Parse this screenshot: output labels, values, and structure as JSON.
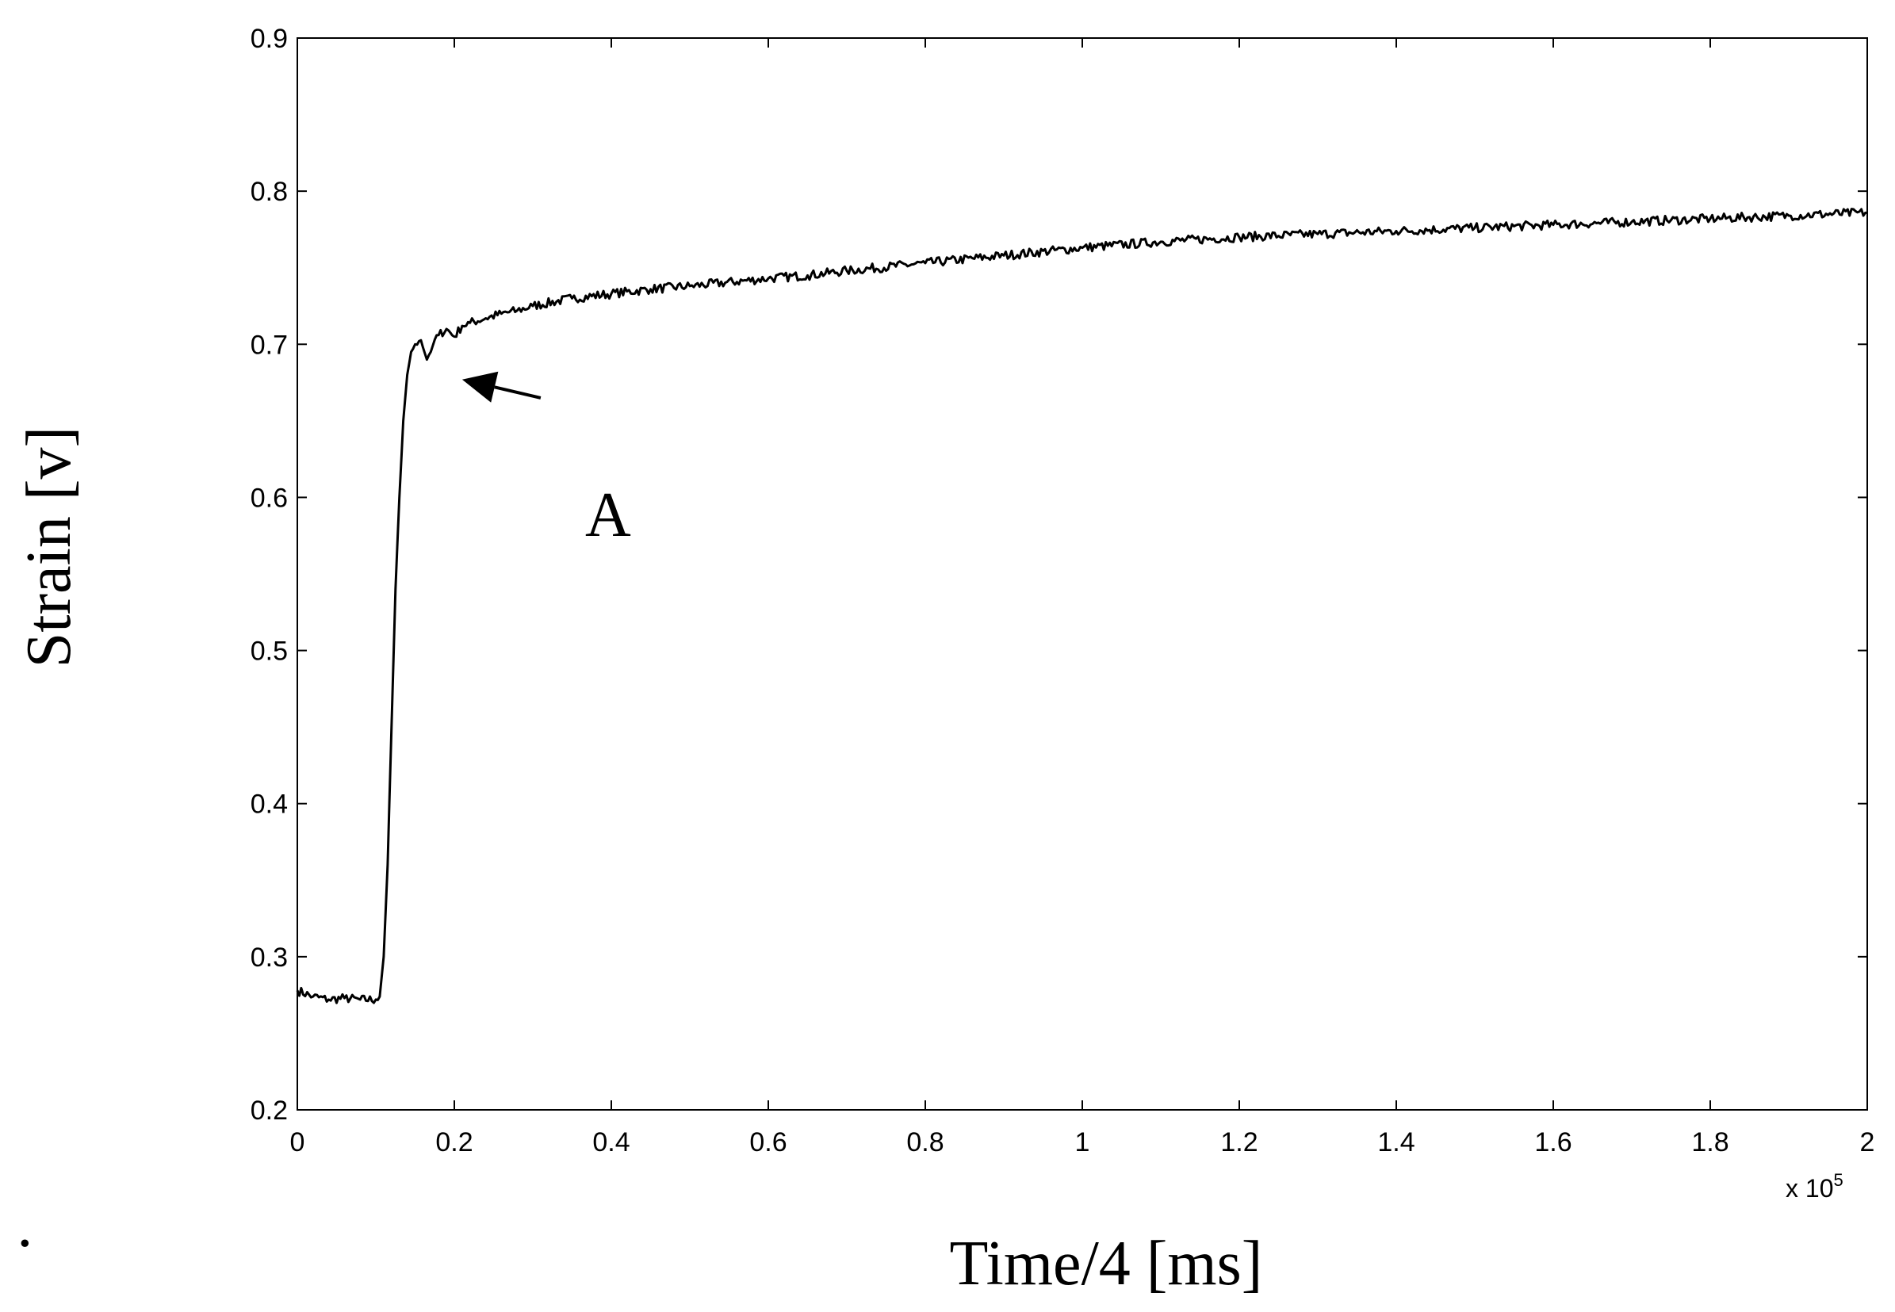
{
  "chart_data": {
    "type": "line",
    "title": "",
    "xlabel": "Time/4 [ms]",
    "ylabel": "Strain [v]",
    "x_multiplier_label": "x 10",
    "x_multiplier_exponent": "5",
    "xlim": [
      0,
      2
    ],
    "ylim": [
      0.2,
      0.9
    ],
    "x_ticks": [
      "0",
      "0.2",
      "0.4",
      "0.6",
      "0.8",
      "1",
      "1.2",
      "1.4",
      "1.6",
      "1.8",
      "2"
    ],
    "y_ticks": [
      "0.2",
      "0.3",
      "0.4",
      "0.5",
      "0.6",
      "0.7",
      "0.8",
      "0.9"
    ],
    "grid": false,
    "legend": "none",
    "line_color": "#000000",
    "annotation": {
      "text": "A",
      "x_from": 0.31,
      "y_from": 0.665,
      "x_to": 0.21,
      "y_to": 0.677
    },
    "footnote_mark": "·",
    "series": [
      {
        "x": [
          0,
          0.02,
          0.04,
          0.06,
          0.08,
          0.1,
          0.105,
          0.11,
          0.115,
          0.12,
          0.125,
          0.13,
          0.135,
          0.14,
          0.145,
          0.15,
          0.155,
          0.16,
          0.165,
          0.17,
          0.175,
          0.18,
          0.19,
          0.2,
          0.21,
          0.22,
          0.24,
          0.26,
          0.28,
          0.3,
          0.35,
          0.4,
          0.45,
          0.5,
          0.6,
          0.65,
          0.7,
          0.8,
          0.9,
          1.0,
          1.1,
          1.2,
          1.3,
          1.4,
          1.5,
          1.6,
          1.7,
          1.8,
          1.9,
          2.0
        ],
        "y": [
          0.278,
          0.274,
          0.272,
          0.273,
          0.272,
          0.272,
          0.274,
          0.3,
          0.36,
          0.45,
          0.54,
          0.6,
          0.65,
          0.68,
          0.695,
          0.7,
          0.702,
          0.698,
          0.69,
          0.695,
          0.703,
          0.706,
          0.71,
          0.705,
          0.712,
          0.714,
          0.717,
          0.72,
          0.722,
          0.725,
          0.73,
          0.733,
          0.736,
          0.738,
          0.743,
          0.745,
          0.748,
          0.753,
          0.758,
          0.763,
          0.767,
          0.77,
          0.772,
          0.774,
          0.776,
          0.778,
          0.78,
          0.782,
          0.784,
          0.786
        ]
      }
    ]
  }
}
